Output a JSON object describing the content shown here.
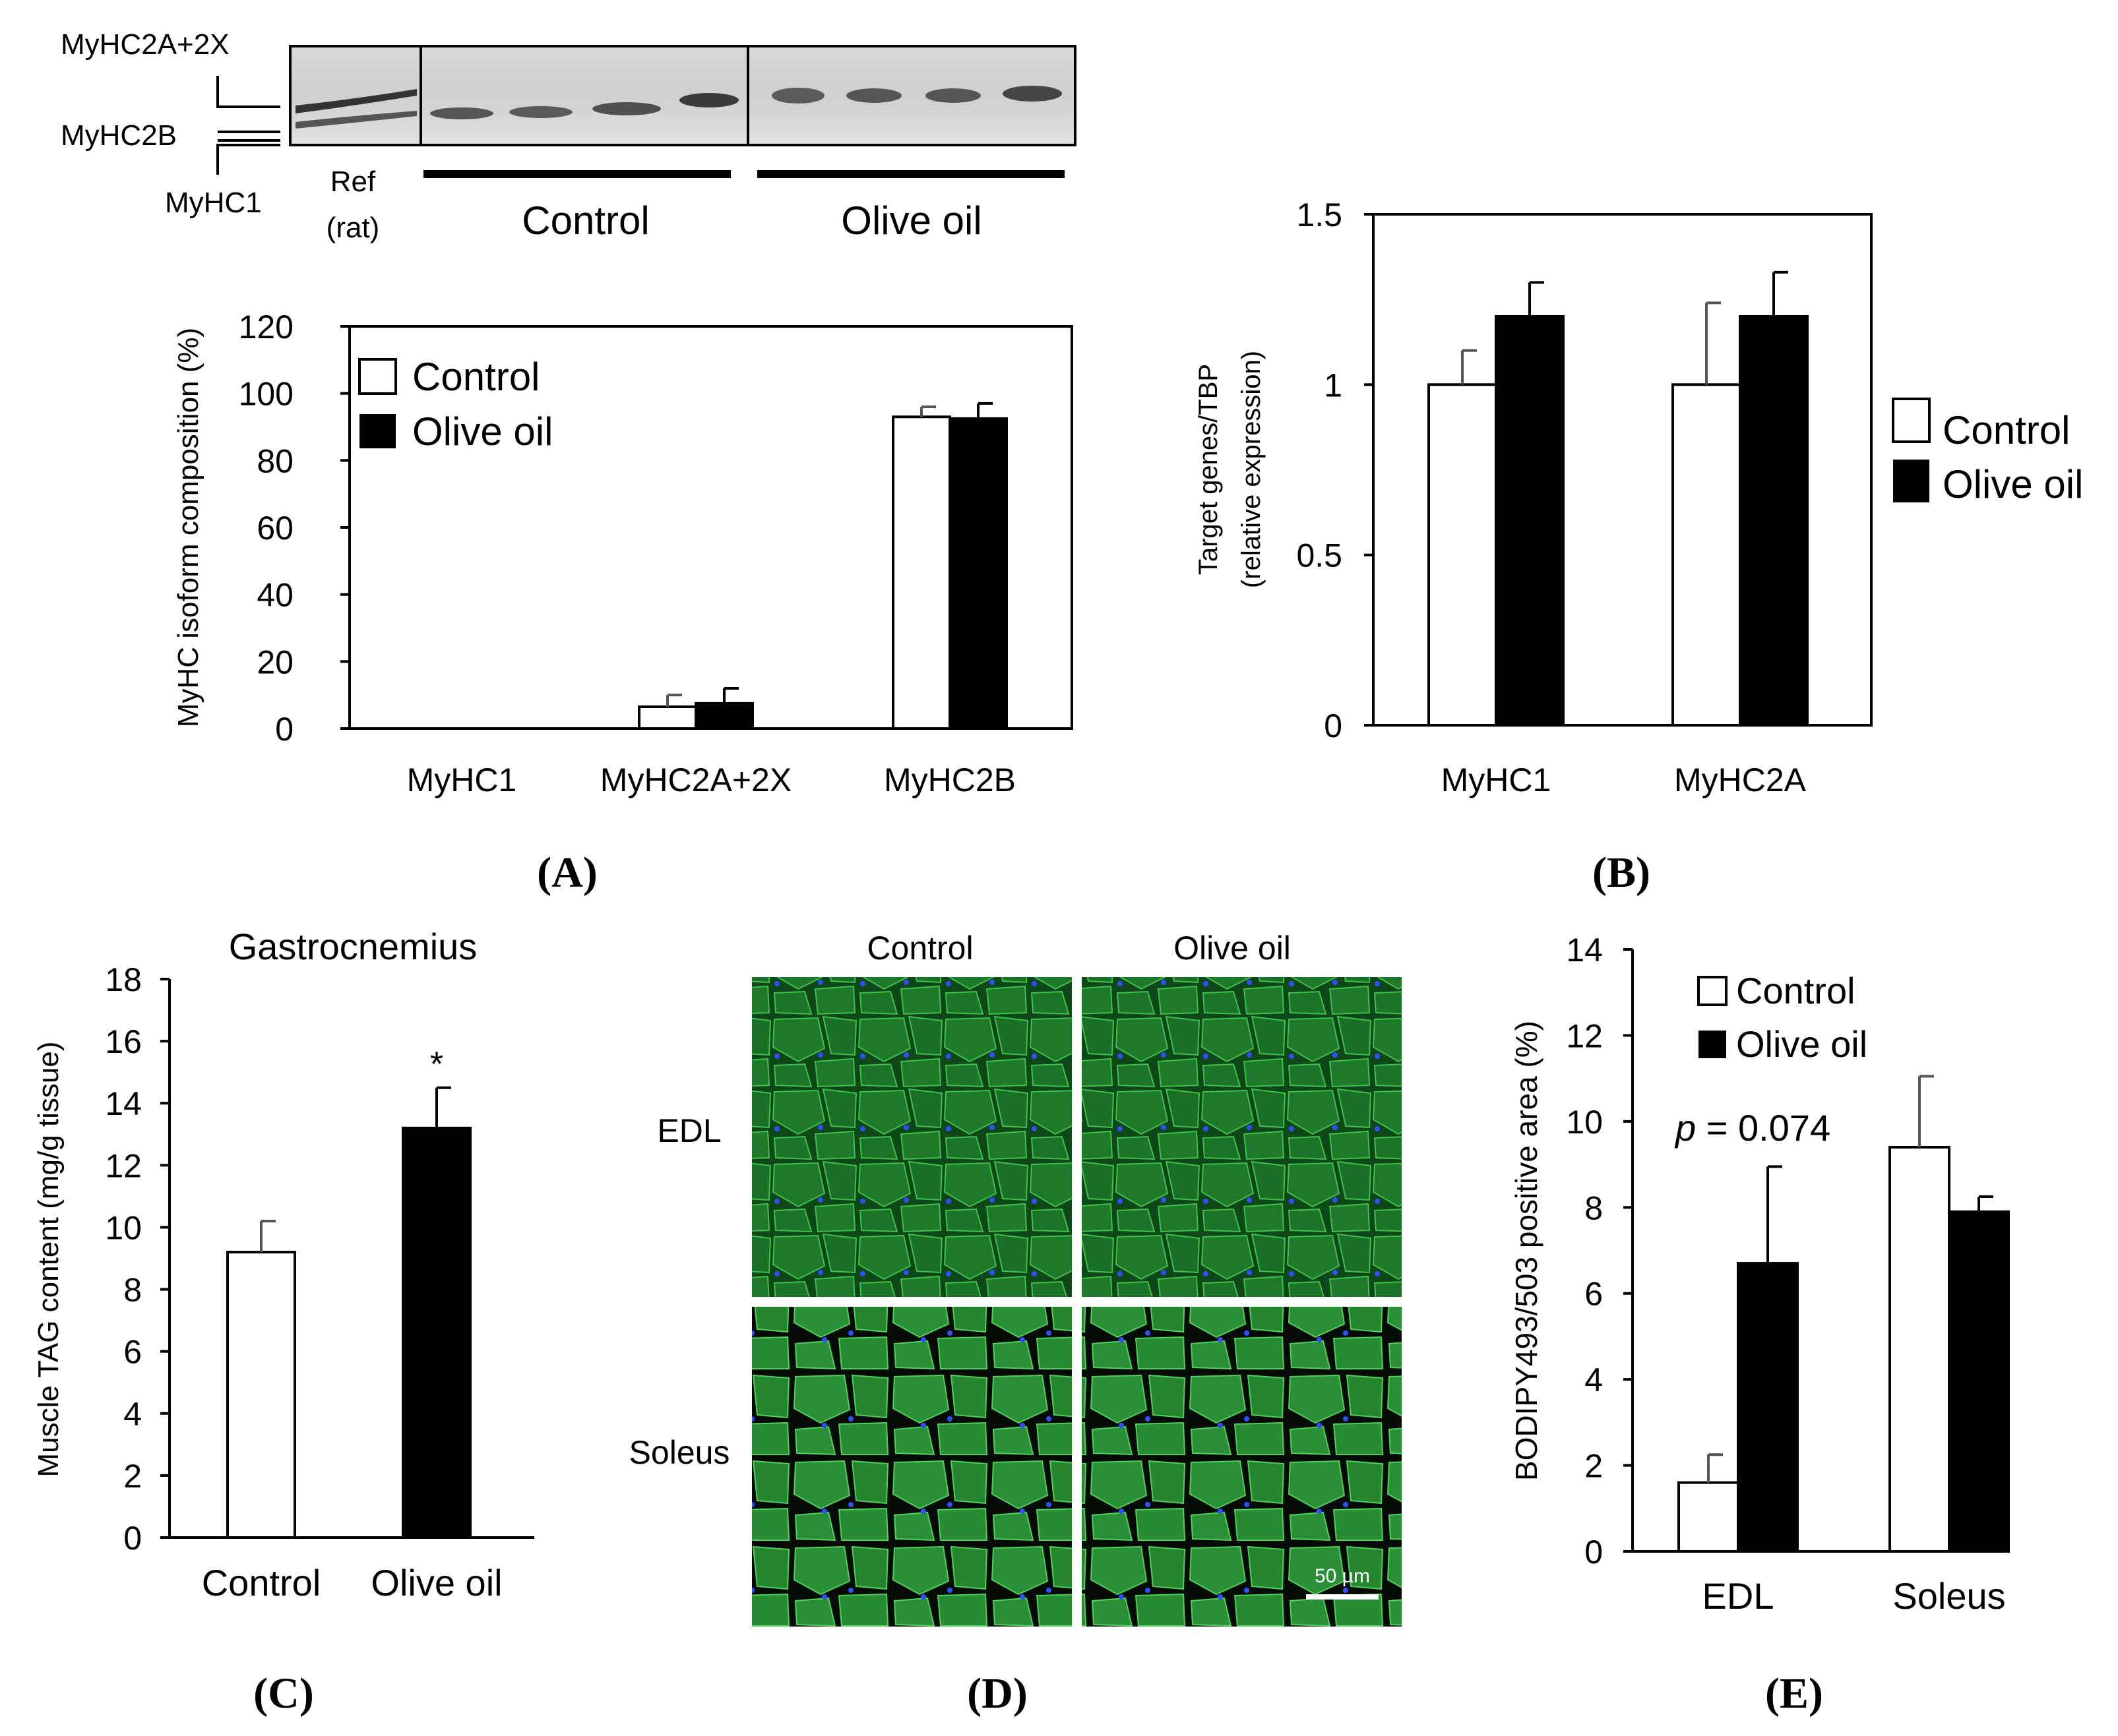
{
  "colors": {
    "control": "#ffffff",
    "olive": "#000000",
    "axis": "#000000",
    "err": "#555555",
    "fiber": "#1f8a2a",
    "nuclei": "#2a3cff"
  },
  "blot": {
    "labels": [
      "MyHC2A+2X",
      "MyHC2B",
      "MyHC1"
    ],
    "ref_label": [
      "Ref",
      "(rat)"
    ],
    "group_control": "Control",
    "group_olive": "Olive oil"
  },
  "panel_labels": {
    "A": "A",
    "B": "B",
    "C": "C",
    "D": "D",
    "E": "E"
  },
  "micro": {
    "col_labels": [
      "Control",
      "Olive oil"
    ],
    "row_labels": [
      "EDL",
      "Soleus"
    ],
    "scale_bar": "50 µm"
  },
  "chart_data": [
    {
      "id": "A",
      "type": "bar",
      "title": "",
      "categories": [
        "MyHC1",
        "MyHC2A+2X",
        "MyHC2B"
      ],
      "series": [
        {
          "name": "Control",
          "values": [
            0,
            6.5,
            93
          ],
          "errors": [
            0,
            3.5,
            3
          ]
        },
        {
          "name": "Olive oil",
          "values": [
            0,
            7.5,
            92.5
          ],
          "errors": [
            0,
            4.5,
            4.5
          ]
        }
      ],
      "xlabel": "",
      "ylabel": "MyHC isoform composition (%)",
      "ylim": [
        0,
        120
      ],
      "yticks": [
        "0",
        "20",
        "40",
        "60",
        "80",
        "100",
        "120"
      ],
      "legend": [
        "Control",
        "Olive oil"
      ],
      "legend_position": "top-left"
    },
    {
      "id": "B",
      "type": "bar",
      "title": "",
      "categories": [
        "MyHC1",
        "MyHC2A"
      ],
      "series": [
        {
          "name": "Control",
          "values": [
            1.0,
            1.0
          ],
          "errors": [
            0.1,
            0.24
          ]
        },
        {
          "name": "Olive oil",
          "values": [
            1.2,
            1.2
          ],
          "errors": [
            0.1,
            0.13
          ]
        }
      ],
      "xlabel": "",
      "ylabel": [
        "Target genes/TBP",
        "(relative expression)"
      ],
      "ylim": [
        0,
        1.5
      ],
      "yticks": [
        "0",
        "0.5",
        "1",
        "1.5"
      ],
      "legend": [
        "Control",
        "Olive oil"
      ],
      "legend_position": "right"
    },
    {
      "id": "C",
      "type": "bar",
      "title": "Gastrocnemius",
      "categories": [
        "Control",
        "Olive oil"
      ],
      "series": [
        {
          "name": "Muscle TAG",
          "values": [
            9.2,
            13.2
          ],
          "errors": [
            1.0,
            1.3
          ]
        }
      ],
      "annotations": [
        "",
        "*"
      ],
      "xlabel": "",
      "ylabel": "Muscle TAG content (mg/g tissue)",
      "ylim": [
        0,
        18
      ],
      "yticks": [
        "0",
        "2",
        "4",
        "6",
        "8",
        "10",
        "12",
        "14",
        "16",
        "18"
      ]
    },
    {
      "id": "E",
      "type": "bar",
      "title": "",
      "categories": [
        "EDL",
        "Soleus"
      ],
      "series": [
        {
          "name": "Control",
          "values": [
            1.6,
            9.4
          ],
          "errors": [
            0.65,
            1.65
          ]
        },
        {
          "name": "Olive oil",
          "values": [
            6.7,
            7.9
          ],
          "errors": [
            2.25,
            0.35
          ]
        }
      ],
      "annotation_p": "= 0.074",
      "annotation_p_italic": "p",
      "xlabel": "",
      "ylabel": "BODIPY493/503 positive area (%)",
      "ylim": [
        0,
        14
      ],
      "yticks": [
        "0",
        "2",
        "4",
        "6",
        "8",
        "10",
        "12",
        "14"
      ],
      "legend": [
        "Control",
        "Olive oil"
      ],
      "legend_position": "top-left"
    }
  ]
}
